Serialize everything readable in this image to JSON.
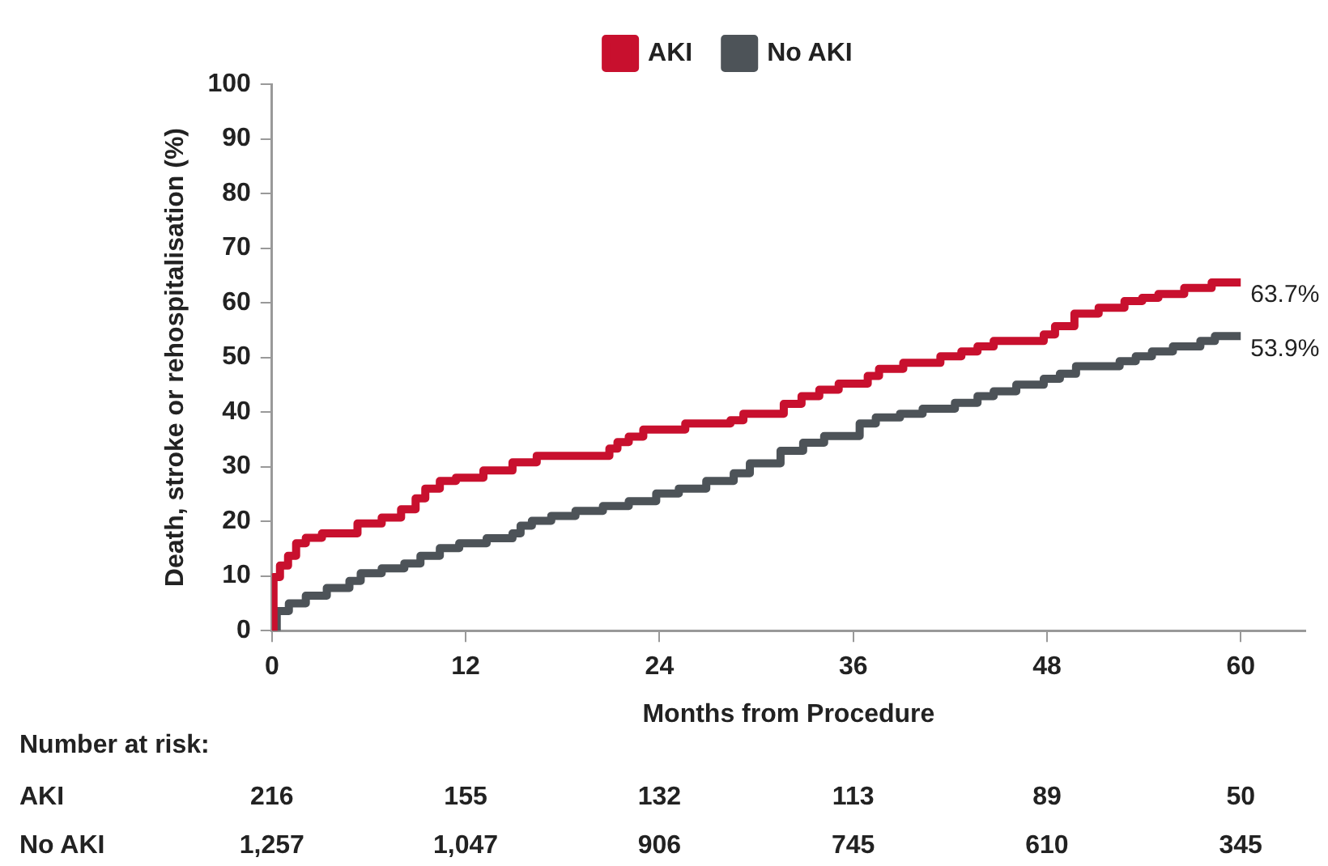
{
  "chart_data": {
    "type": "step",
    "xlabel": "Months from Procedure",
    "ylabel": "Death, stroke or rehospitalisation (%)",
    "xlim": [
      0,
      64
    ],
    "xticks": [
      0,
      12,
      24,
      36,
      48,
      60
    ],
    "ylim": [
      0,
      100
    ],
    "yticks": [
      0,
      10,
      20,
      30,
      40,
      50,
      60,
      70,
      80,
      90,
      100
    ],
    "grid": false,
    "legend": "top",
    "series": [
      {
        "name": "AKI",
        "color": "#c8102e",
        "x": [
          0,
          0.1,
          0.5,
          1.0,
          1.5,
          2.1,
          3.1,
          5.3,
          6.8,
          8.0,
          8.9,
          9.5,
          10.4,
          11.4,
          13.1,
          14.9,
          16.4,
          20.9,
          21.4,
          22.1,
          23.0,
          25.6,
          28.4,
          29.2,
          31.7,
          32.8,
          33.9,
          35.1,
          36.9,
          37.6,
          39.1,
          41.4,
          42.7,
          43.7,
          44.7,
          47.8,
          48.5,
          49.7,
          51.2,
          52.8,
          53.9,
          54.9,
          56.5,
          58.2,
          60
        ],
        "values": [
          0,
          9.8,
          11.9,
          13.7,
          16,
          17,
          17.8,
          19.6,
          20.7,
          22.2,
          24.2,
          26,
          27.4,
          28,
          29.3,
          30.8,
          32,
          33.3,
          34.5,
          35.5,
          36.8,
          37.9,
          38.5,
          39.7,
          41.5,
          42.9,
          44.1,
          45.2,
          46.6,
          47.9,
          49,
          50.2,
          51.1,
          52,
          53,
          54.2,
          55.7,
          58,
          59.1,
          60.3,
          60.9,
          61.6,
          62.7,
          63.7,
          63.7
        ]
      },
      {
        "name": "No AKI",
        "color": "#4d5358",
        "x": [
          0,
          0.3,
          1.05,
          2.1,
          3.4,
          4.8,
          5.5,
          6.8,
          8.2,
          9.2,
          10.4,
          11.6,
          13.3,
          14.9,
          15.4,
          16.1,
          17.3,
          18.8,
          20.5,
          22.1,
          23.8,
          25.2,
          26.9,
          28.6,
          29.6,
          31.5,
          32.9,
          34.2,
          36.4,
          37.4,
          38.9,
          40.3,
          42.3,
          43.7,
          44.7,
          46.1,
          47.8,
          48.8,
          49.8,
          52.5,
          53.5,
          54.5,
          55.8,
          57.5,
          58.4,
          60
        ],
        "values": [
          0,
          3.6,
          5,
          6.4,
          7.8,
          9.1,
          10.5,
          11.4,
          12.3,
          13.7,
          15.1,
          16,
          16.9,
          17.8,
          19.2,
          20.1,
          21,
          21.9,
          22.8,
          23.7,
          25.1,
          26,
          27.4,
          28.8,
          30.6,
          32.9,
          34.4,
          35.6,
          37.9,
          39,
          39.7,
          40.6,
          41.7,
          42.9,
          43.8,
          45,
          46.1,
          47,
          48.4,
          49.3,
          50.2,
          51.1,
          52,
          53,
          53.9,
          53.9
        ]
      }
    ],
    "annotations": [
      {
        "text": "63.7%",
        "x": 60,
        "y": 63.7
      },
      {
        "text": "53.9%",
        "x": 60,
        "y": 53.9
      },
      "Number at risk:",
      "AKI",
      "216",
      "155",
      "132",
      "113",
      "89",
      "50",
      "No AKI",
      "1,257",
      "1,047",
      "906",
      "745",
      "610",
      "345"
    ]
  }
}
